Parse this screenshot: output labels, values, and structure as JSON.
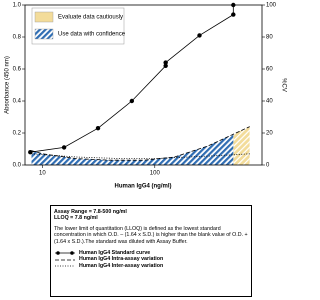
{
  "chart_data": {
    "type": "line",
    "x_label": "Human IgG4 (ng/ml)",
    "y_label": "Absorbance (450 nm)",
    "y2_label": "%CV",
    "xscale": "log",
    "xlim": [
      7,
      900
    ],
    "xticks": [
      10,
      100
    ],
    "ylim": [
      0,
      1.0
    ],
    "yticks": [
      {
        "value": 0,
        "label": "0.0"
      },
      {
        "value": 0.2,
        "label": "0.2"
      },
      {
        "value": 0.4,
        "label": "0.4"
      },
      {
        "value": 0.6,
        "label": "0.6"
      },
      {
        "value": 0.8,
        "label": "0.8"
      },
      {
        "value": 1.0,
        "label": "1.0"
      }
    ],
    "y2lim": [
      0,
      100
    ],
    "y2ticks": [
      0,
      20,
      40,
      60,
      80,
      100
    ],
    "regions": [
      {
        "name": "Evaluate data cautiously",
        "color": "#f3dc9a",
        "range": [
          500,
          700
        ]
      },
      {
        "name": "Use data with confidence",
        "color": "#2f6db3",
        "range": [
          7.8,
          500
        ]
      }
    ],
    "series": [
      {
        "name": "Human IgG4 Standard curve",
        "color": "#000000",
        "style": "solid",
        "marker": true,
        "x": [
          7.8,
          15.6,
          31.25,
          62.5,
          125,
          125,
          250,
          500,
          500
        ],
        "values": [
          0.08,
          0.11,
          0.23,
          0.4,
          0.62,
          0.64,
          0.81,
          0.94,
          1.0
        ]
      },
      {
        "name": "Human IgG4 Intra-assay variation",
        "color": "#000000",
        "style": "dashed",
        "marker": false,
        "axis": "y2",
        "x": [
          8,
          10,
          20,
          40,
          80,
          150,
          300,
          700
        ],
        "values": [
          9,
          7,
          4,
          3,
          3,
          5,
          12,
          24
        ]
      },
      {
        "name": "Human IgG4 Inter-assay variation",
        "color": "#000000",
        "style": "dotted",
        "marker": false,
        "axis": "y2",
        "x": [
          8,
          20,
          50,
          100,
          200,
          400,
          700
        ],
        "values": [
          7,
          5,
          4,
          4,
          5,
          6,
          7
        ]
      }
    ]
  },
  "info_box": {
    "assay_range": "Assay Range = 7.8-500 ng/ml",
    "lloq": "LLOQ = 7.8 ng/ml",
    "note": "The lower limit of quantitation (LLOQ) is defined as the lowest standard concentration in which O.D. – (1.64 x S.D.) is higher than the blank value of O.D. + (1.64 x S.D.).The standard was diluted with Assay Buffer."
  }
}
